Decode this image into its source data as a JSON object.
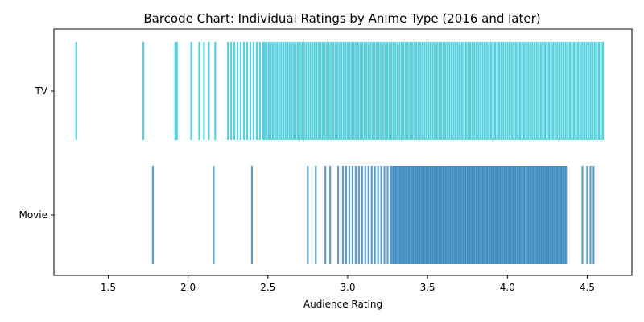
{
  "chart_data": {
    "type": "barcode",
    "title": "Barcode Chart: Individual Ratings by Anime Type (2016 and later)",
    "xlabel": "Audience Rating",
    "ylabel": "",
    "xlim": [
      1.16,
      4.78
    ],
    "xticks": [
      1.5,
      2.0,
      2.5,
      3.0,
      3.5,
      4.0,
      4.5
    ],
    "xtick_labels": [
      "1.5",
      "2.0",
      "2.5",
      "3.0",
      "3.5",
      "4.0",
      "4.5"
    ],
    "categories": [
      "TV",
      "Movie"
    ],
    "series": [
      {
        "name": "TV",
        "color": "#17becf",
        "sparse_values": [
          1.3,
          1.72,
          1.92,
          1.93,
          2.02,
          2.07,
          2.1,
          2.13,
          2.17,
          2.25,
          2.27,
          2.29,
          2.31,
          2.33,
          2.35,
          2.37,
          2.39,
          2.41,
          2.43,
          2.45,
          2.47
        ],
        "dense_range": [
          2.48,
          4.61
        ],
        "dense_step": 0.013
      },
      {
        "name": "Movie",
        "color": "#1f77b4",
        "sparse_values": [
          1.78,
          2.16,
          2.4,
          2.75,
          2.8,
          2.86,
          2.89,
          2.94,
          2.97,
          2.99,
          3.01,
          3.03,
          3.05,
          3.07,
          3.09,
          3.11,
          3.13,
          3.15,
          3.17,
          3.19,
          3.21,
          3.23,
          3.25,
          3.27,
          4.47,
          4.5,
          4.52,
          4.54
        ],
        "dense_range": [
          3.28,
          4.37
        ],
        "dense_step": 0.008
      }
    ],
    "grid": false,
    "legend": "none"
  }
}
